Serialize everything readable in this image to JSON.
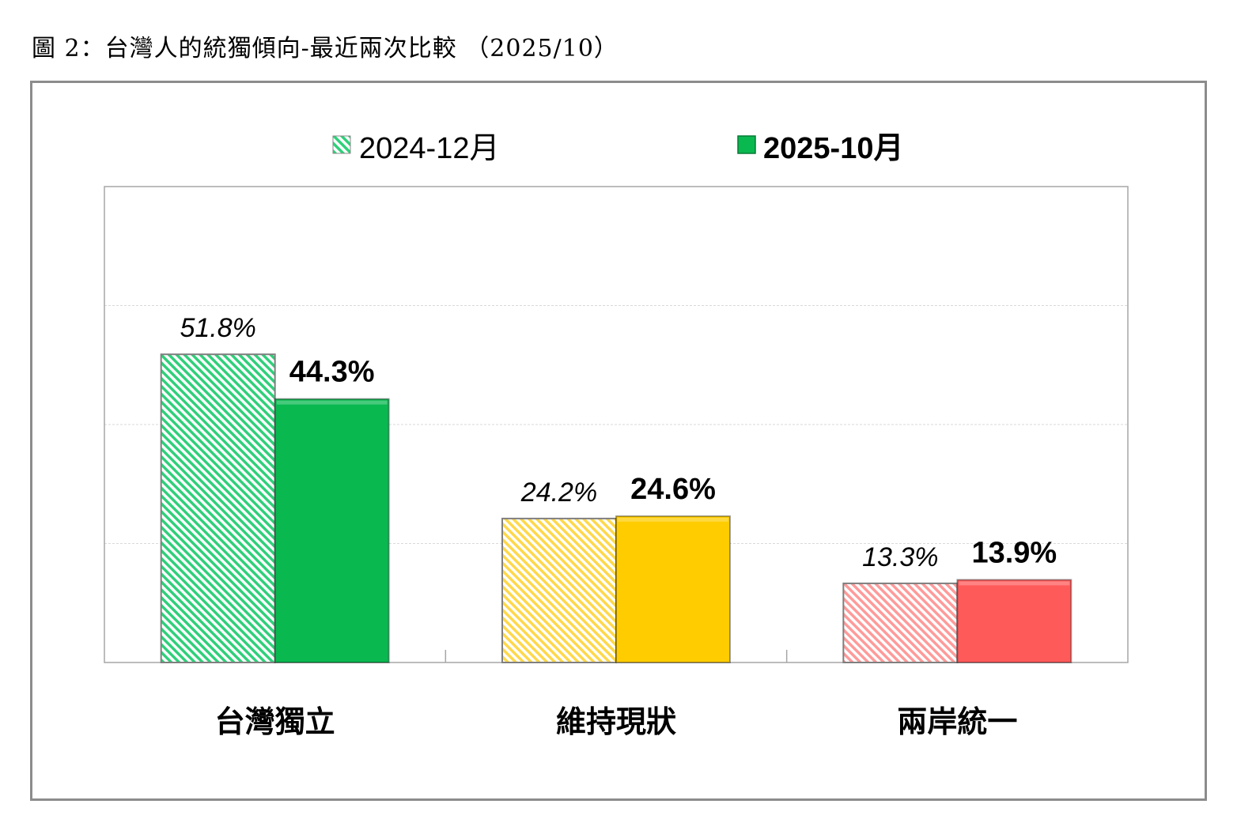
{
  "title": "圖 2：台灣人的統獨傾向-最近兩次比較 （2025/10）",
  "chart_data": {
    "type": "bar",
    "title": "圖 2：台灣人的統獨傾向-最近兩次比較 （2025/10）",
    "categories": [
      "台灣獨立",
      "維持現狀",
      "兩岸統一"
    ],
    "series": [
      {
        "name": "2024-12月",
        "values": [
          51.8,
          24.2,
          13.3
        ],
        "labels": [
          "51.8%",
          "24.2%",
          "13.3%"
        ],
        "style": "hatched"
      },
      {
        "name": "2025-10月",
        "values": [
          44.3,
          24.6,
          13.9
        ],
        "labels": [
          "44.3%",
          "24.6%",
          "13.9%"
        ],
        "style": "solid"
      }
    ],
    "category_colors": [
      "#0ab850",
      "#ffcc00",
      "#ff5a5a"
    ],
    "hatch_colors": [
      "#2fd07a",
      "#ffd84a",
      "#ff9a9a"
    ],
    "ylim": [
      0,
      80
    ],
    "grid_step": 20,
    "grid": true,
    "legend_position": "top-center",
    "xlabel": "",
    "ylabel": ""
  }
}
